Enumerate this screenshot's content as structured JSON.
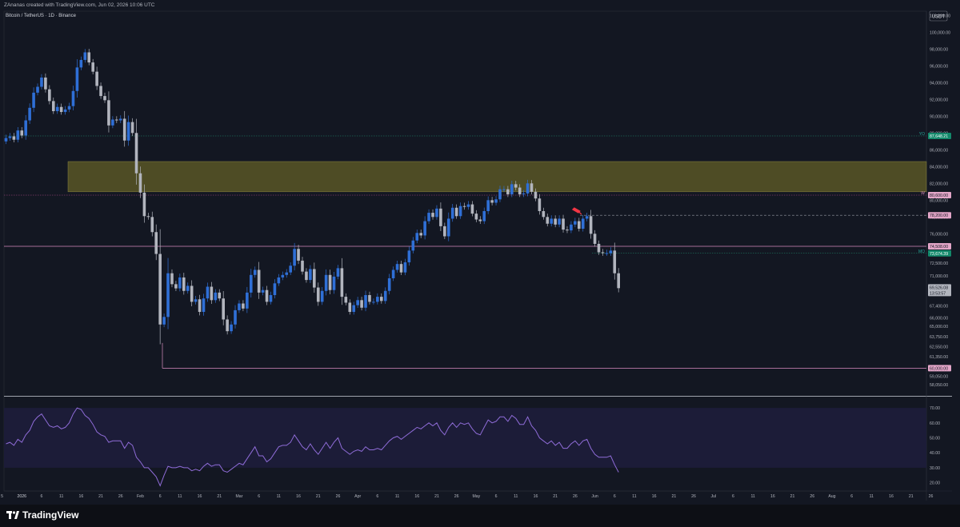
{
  "header": {
    "credit": "ZAnanas created with TradingView.com, Jun 02, 2026 10:06 UTC",
    "symbol": "Bitcoin / TetherUS · 1D · Binance"
  },
  "footer": {
    "brand": "TradingView"
  },
  "colors": {
    "background": "#131722",
    "candle_up": "#2f6fd6",
    "candle_down": "#b2b5be",
    "zone": "#5f5b26",
    "rsi_line": "#8f6cd8",
    "rsi_band": "#1c1c38",
    "label_green": "#13896b",
    "label_pink": "#e3a6c8",
    "marker": "#f23645"
  },
  "chart_data": [
    {
      "type": "candlestick",
      "currency": "USDT",
      "interval": "1D",
      "ylim": [
        56800,
        102500
      ],
      "y_ticks": [
        "102,000.00",
        "100,000.00",
        "98,000.00",
        "96,000.00",
        "94,000.00",
        "92,000.00",
        "90,000.00",
        "88,000.00",
        "86,000.00",
        "84,000.00",
        "82,000.00",
        "80,000.00",
        "78,000.00",
        "76,000.00",
        "74,500.00",
        "72,500.00",
        "71,000.00",
        "69,000.00",
        "67,400.00",
        "66,000.00",
        "65,000.00",
        "63,750.00",
        "62,550.00",
        "61,350.00",
        "60,000.00",
        "59,050.00",
        "58,050.00"
      ],
      "x_ticks": [
        "5",
        "2026",
        "6",
        "11",
        "16",
        "21",
        "26",
        "Feb",
        "6",
        "11",
        "16",
        "21",
        "Mar",
        "6",
        "11",
        "16",
        "21",
        "26",
        "Apr",
        "6",
        "11",
        "16",
        "21",
        "26",
        "May",
        "6",
        "11",
        "16",
        "21",
        "26",
        "Jun",
        "6",
        "11",
        "16",
        "21",
        "26",
        "Jul",
        "6",
        "11",
        "16",
        "21",
        "26",
        "Aug",
        "6",
        "11",
        "16",
        "21",
        "26"
      ],
      "first_day": "2025-12-30",
      "closes": [
        87400,
        87600,
        87200,
        88300,
        87700,
        89500,
        91000,
        92800,
        93500,
        94600,
        93200,
        91800,
        90600,
        91100,
        90500,
        90800,
        91200,
        93000,
        95800,
        96700,
        97600,
        96400,
        95300,
        93600,
        92400,
        91900,
        88900,
        89600,
        89500,
        89700,
        87100,
        89300,
        88000,
        83200,
        80900,
        78100,
        78000,
        76200,
        73600,
        65200,
        66100,
        71300,
        70000,
        69500,
        70800,
        69200,
        69800,
        67900,
        68200,
        66700,
        68300,
        69700,
        68100,
        69000,
        68300,
        65800,
        64400,
        65200,
        66900,
        67700,
        67100,
        69000,
        71100,
        71700,
        69000,
        69300,
        67900,
        68700,
        70100,
        70800,
        71100,
        71400,
        72200,
        74200,
        72800,
        71500,
        70500,
        71800,
        69600,
        67900,
        69200,
        71100,
        69300,
        70900,
        71900,
        68500,
        67800,
        66700,
        67500,
        68100,
        67200,
        68700,
        67900,
        67900,
        68500,
        68000,
        69200,
        70700,
        71700,
        72400,
        71400,
        72600,
        74000,
        75200,
        76100,
        75800,
        77500,
        78500,
        78000,
        79000,
        76900,
        75700,
        77800,
        79100,
        78100,
        79300,
        79200,
        79500,
        78400,
        77700,
        77500,
        78700,
        80000,
        79700,
        80100,
        81300,
        81300,
        80700,
        81900,
        81500,
        80700,
        80800,
        82000,
        81000,
        80200,
        78700,
        78000,
        77200,
        77800,
        77100,
        77800,
        76500,
        76400,
        77100,
        77500,
        76600,
        77800,
        78100,
        76000,
        74800,
        73800,
        73700,
        73700,
        74000,
        71300,
        69526
      ],
      "lines": [
        {
          "label": "YO",
          "price": 87648.21,
          "text": "87,648.21"
        },
        {
          "label": "W",
          "price": 80600,
          "text": "80,600.00"
        },
        {
          "label": "",
          "price": 78200,
          "text": "78,200.00"
        },
        {
          "label": "",
          "price": 74508,
          "text": "74,508.00"
        },
        {
          "label": "MO",
          "price": 73674.39,
          "text": "73,674.39"
        },
        {
          "label": "",
          "price": 60000,
          "text": "60,000.00"
        }
      ],
      "zone": {
        "low": 81000,
        "high": 84600
      },
      "last_price": {
        "price": 69526,
        "text": "69,526.08",
        "countdown": "13:53:57"
      }
    },
    {
      "type": "line",
      "name": "RSI",
      "ylim": [
        15,
        77
      ],
      "y_ticks": [
        "70.00",
        "60.00",
        "50.00",
        "40.00",
        "30.00",
        "20.00"
      ],
      "band": [
        30,
        70
      ],
      "values": [
        46,
        47,
        45,
        49,
        47,
        52,
        55,
        61,
        64,
        66,
        62,
        58,
        57,
        58,
        56,
        57,
        60,
        66,
        70,
        69,
        65,
        63,
        59,
        54,
        52,
        51,
        47,
        48,
        48,
        48,
        43,
        47,
        45,
        37,
        34,
        30,
        30,
        27,
        24,
        18,
        25,
        31,
        30,
        30,
        31,
        30,
        30,
        28,
        29,
        28,
        31,
        33,
        31,
        32,
        32,
        28,
        27,
        29,
        31,
        33,
        32,
        36,
        40,
        44,
        38,
        38,
        34,
        36,
        40,
        44,
        45,
        45,
        47,
        52,
        48,
        44,
        42,
        46,
        42,
        39,
        43,
        47,
        43,
        47,
        50,
        43,
        41,
        39,
        41,
        42,
        41,
        44,
        42,
        42,
        43,
        42,
        45,
        48,
        50,
        51,
        49,
        51,
        53,
        55,
        57,
        56,
        58,
        60,
        58,
        60,
        55,
        52,
        57,
        60,
        57,
        60,
        59,
        60,
        56,
        53,
        52,
        57,
        62,
        60,
        61,
        64,
        64,
        61,
        65,
        63,
        59,
        59,
        64,
        58,
        55,
        50,
        48,
        46,
        48,
        45,
        47,
        43,
        43,
        46,
        48,
        45,
        48,
        49,
        43,
        39,
        37,
        37,
        37,
        38,
        32,
        27
      ]
    }
  ]
}
